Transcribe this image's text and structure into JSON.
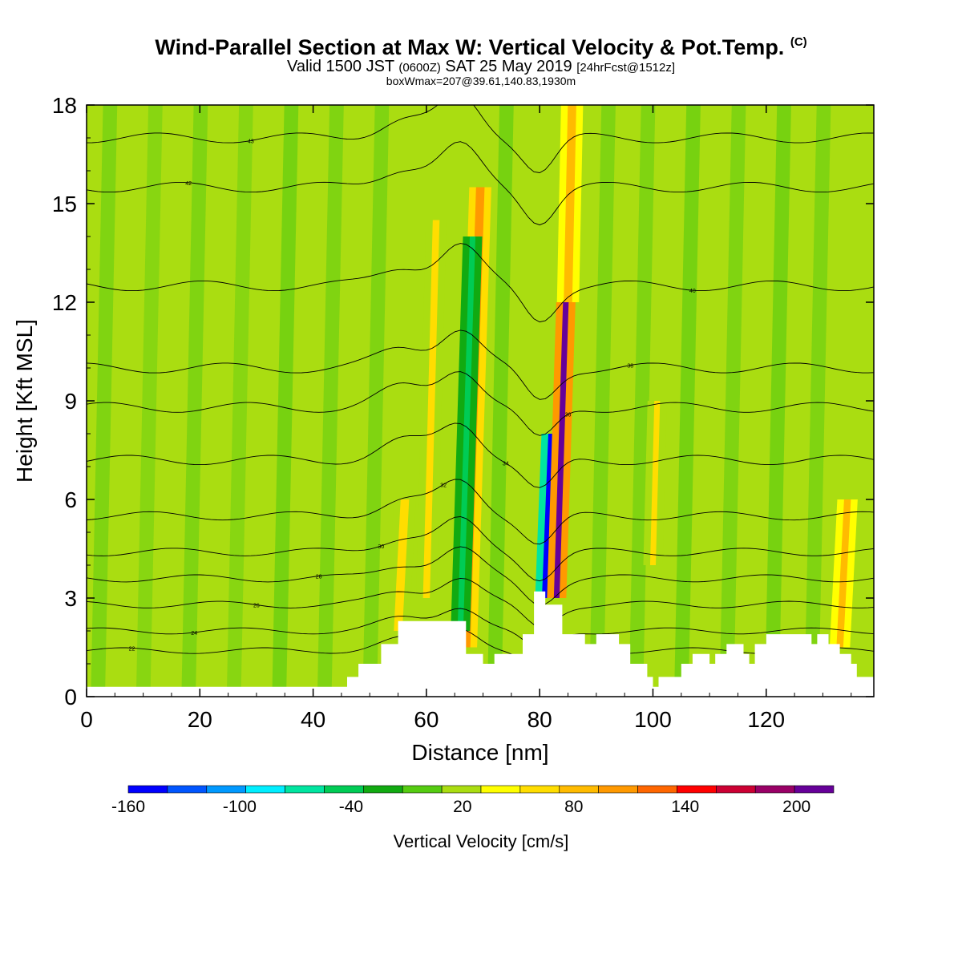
{
  "title": {
    "main": "Wind-Parallel Section at Max W: Vertical Velocity & Pot.Temp.",
    "copyright": "(C)",
    "valid_prefix": "Valid 1500 JST",
    "valid_utc": "(0600Z)",
    "valid_date": "SAT 25 May 2019",
    "forecast": "[24hrFcst@1512z]",
    "boxwmax": "boxWmax=207@39.61,140.83,1930m"
  },
  "chart_data": {
    "type": "heatmap",
    "xlabel": "Distance [nm]",
    "ylabel": "Height [Kft MSL]",
    "xlim": [
      0,
      139
    ],
    "ylim": [
      0,
      18
    ],
    "x_ticks": [
      "0",
      "20",
      "40",
      "60",
      "80",
      "100",
      "120"
    ],
    "y_ticks": [
      "0",
      "3",
      "6",
      "9",
      "12",
      "15",
      "18"
    ],
    "colorbar": {
      "label": "Vertical Velocity [cm/s]",
      "min": -160,
      "max": 220,
      "step": 20,
      "tick_labels": [
        "-160",
        "-100",
        "-40",
        "20",
        "80",
        "140",
        "200"
      ],
      "colors": [
        "#0000ff",
        "#0055ff",
        "#0099ff",
        "#00eeff",
        "#00e5a0",
        "#00cc55",
        "#11aa11",
        "#55cc11",
        "#aadd11",
        "#ffff00",
        "#ffdd00",
        "#ffbb00",
        "#ff9900",
        "#ff6600",
        "#ff0000",
        "#cc0033",
        "#990066",
        "#660099"
      ]
    },
    "terrain_top_kft": [
      [
        0,
        0.3
      ],
      [
        46,
        0.3
      ],
      [
        46,
        0.6
      ],
      [
        48,
        0.6
      ],
      [
        48,
        1.0
      ],
      [
        52,
        1.0
      ],
      [
        52,
        1.6
      ],
      [
        55,
        1.6
      ],
      [
        55,
        2.3
      ],
      [
        67,
        2.3
      ],
      [
        67,
        1.3
      ],
      [
        70,
        1.3
      ],
      [
        70,
        1.0
      ],
      [
        72,
        1.0
      ],
      [
        72,
        1.3
      ],
      [
        77,
        1.3
      ],
      [
        77,
        1.9
      ],
      [
        79,
        1.9
      ],
      [
        79,
        3.2
      ],
      [
        81,
        3.2
      ],
      [
        81,
        2.8
      ],
      [
        84,
        2.8
      ],
      [
        84,
        1.9
      ],
      [
        88,
        1.9
      ],
      [
        88,
        1.6
      ],
      [
        90,
        1.6
      ],
      [
        90,
        1.9
      ],
      [
        94,
        1.9
      ],
      [
        94,
        1.6
      ],
      [
        96,
        1.6
      ],
      [
        96,
        1.0
      ],
      [
        99,
        1.0
      ],
      [
        99,
        0.6
      ],
      [
        100,
        0.6
      ],
      [
        100,
        0.3
      ],
      [
        101,
        0.3
      ],
      [
        101,
        0.6
      ],
      [
        105,
        0.6
      ],
      [
        105,
        1.0
      ],
      [
        107,
        1.0
      ],
      [
        107,
        1.3
      ],
      [
        110,
        1.3
      ],
      [
        110,
        1.0
      ],
      [
        111,
        1.0
      ],
      [
        111,
        1.3
      ],
      [
        113,
        1.3
      ],
      [
        113,
        1.6
      ],
      [
        116,
        1.6
      ],
      [
        116,
        1.3
      ],
      [
        117,
        1.3
      ],
      [
        117,
        1.0
      ],
      [
        118,
        1.0
      ],
      [
        118,
        1.6
      ],
      [
        120,
        1.6
      ],
      [
        120,
        1.9
      ],
      [
        128,
        1.9
      ],
      [
        128,
        1.6
      ],
      [
        129,
        1.6
      ],
      [
        129,
        1.9
      ],
      [
        131,
        1.9
      ],
      [
        131,
        1.6
      ],
      [
        133,
        1.6
      ],
      [
        133,
        1.3
      ],
      [
        135,
        1.3
      ],
      [
        135,
        1.0
      ],
      [
        136,
        1.0
      ],
      [
        136,
        0.6
      ],
      [
        139,
        0.6
      ]
    ],
    "velocity_features": [
      {
        "x": 67,
        "y0": 1.5,
        "y1": 15.5,
        "tilt": 0.12,
        "width": 1.5,
        "value": 90
      },
      {
        "x": 66,
        "y0": 2.0,
        "y1": 14.0,
        "tilt": 0.12,
        "width": 1.0,
        "value": -60
      },
      {
        "x": 60,
        "y0": 3.0,
        "y1": 14.5,
        "tilt": 0.1,
        "width": 1.2,
        "value": 40
      },
      {
        "x": 81,
        "y0": 3.0,
        "y1": 8.0,
        "tilt": 0.15,
        "width": 1.2,
        "value": -150
      },
      {
        "x": 83,
        "y0": 3.0,
        "y1": 12.0,
        "tilt": 0.12,
        "width": 1.0,
        "value": 190
      },
      {
        "x": 85,
        "y0": 12.0,
        "y1": 18.0,
        "tilt": 0.08,
        "width": 1.5,
        "value": 60
      },
      {
        "x": 55,
        "y0": 2.0,
        "y1": 6.0,
        "tilt": 0.2,
        "width": 1.5,
        "value": 40
      },
      {
        "x": 133,
        "y0": 1.5,
        "y1": 6.0,
        "tilt": 0.2,
        "width": 1.2,
        "value": 60
      },
      {
        "x": 100,
        "y0": 4.0,
        "y1": 9.0,
        "tilt": 0.1,
        "width": 1.0,
        "value": 40
      }
    ],
    "theta_contours": [
      {
        "label": "22",
        "kft": 1.4
      },
      {
        "label": "24",
        "kft": 2.0
      },
      {
        "label": "26",
        "kft": 2.8
      },
      {
        "label": "28",
        "kft": 3.6
      },
      {
        "label": "30",
        "kft": 4.4
      },
      {
        "label": "32",
        "kft": 5.5
      },
      {
        "label": "34",
        "kft": 7.2
      },
      {
        "label": "36",
        "kft": 8.8
      },
      {
        "label": "38",
        "kft": 10.0
      },
      {
        "label": "40",
        "kft": 12.5
      },
      {
        "label": "42",
        "kft": 15.5
      },
      {
        "label": "43",
        "kft": 17.0
      }
    ]
  }
}
